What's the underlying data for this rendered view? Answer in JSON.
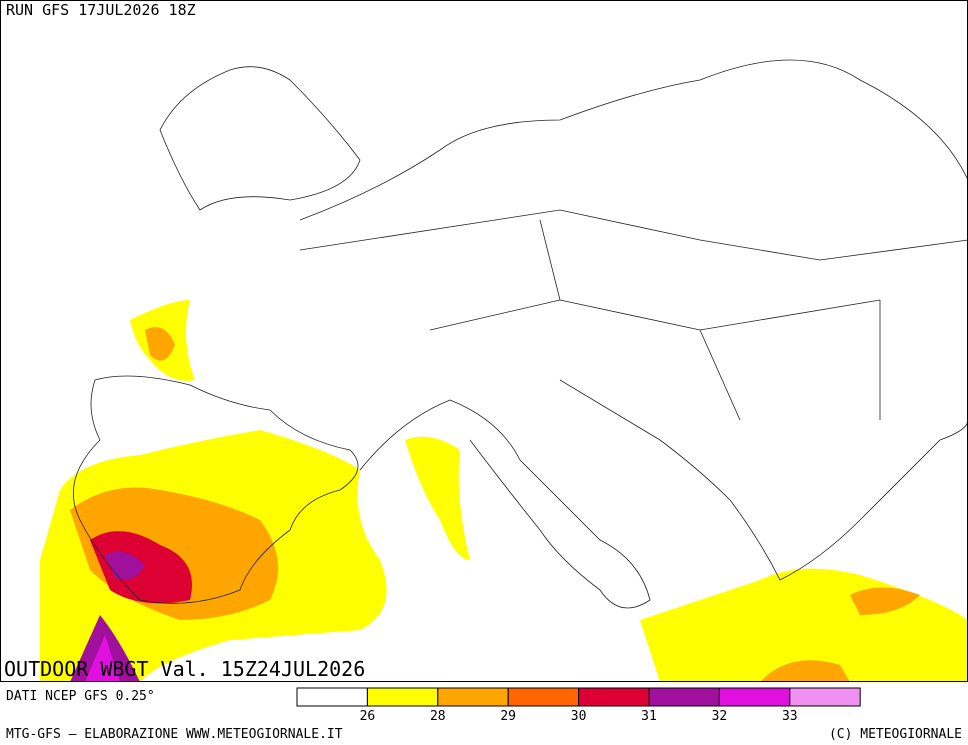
{
  "header": {
    "run": "RUN GFS 17JUL2026 18Z"
  },
  "map": {
    "title": "OUTDOOR WBGT Val. 15Z24JUL2026"
  },
  "legend": {
    "source": "DATI NCEP GFS 0.25°",
    "colors": [
      "#ffffff",
      "#ffff00",
      "#ffa500",
      "#ff6600",
      "#dd0033",
      "#a0109c",
      "#e010e0",
      "#f090f0"
    ],
    "ticks": [
      "26",
      "28",
      "29",
      "30",
      "31",
      "32",
      "33"
    ]
  },
  "footer": {
    "left": "MTG-GFS — ELABORAZIONE WWW.METEOGIORNALE.IT",
    "right": "(C) METEOGIORNALE"
  }
}
